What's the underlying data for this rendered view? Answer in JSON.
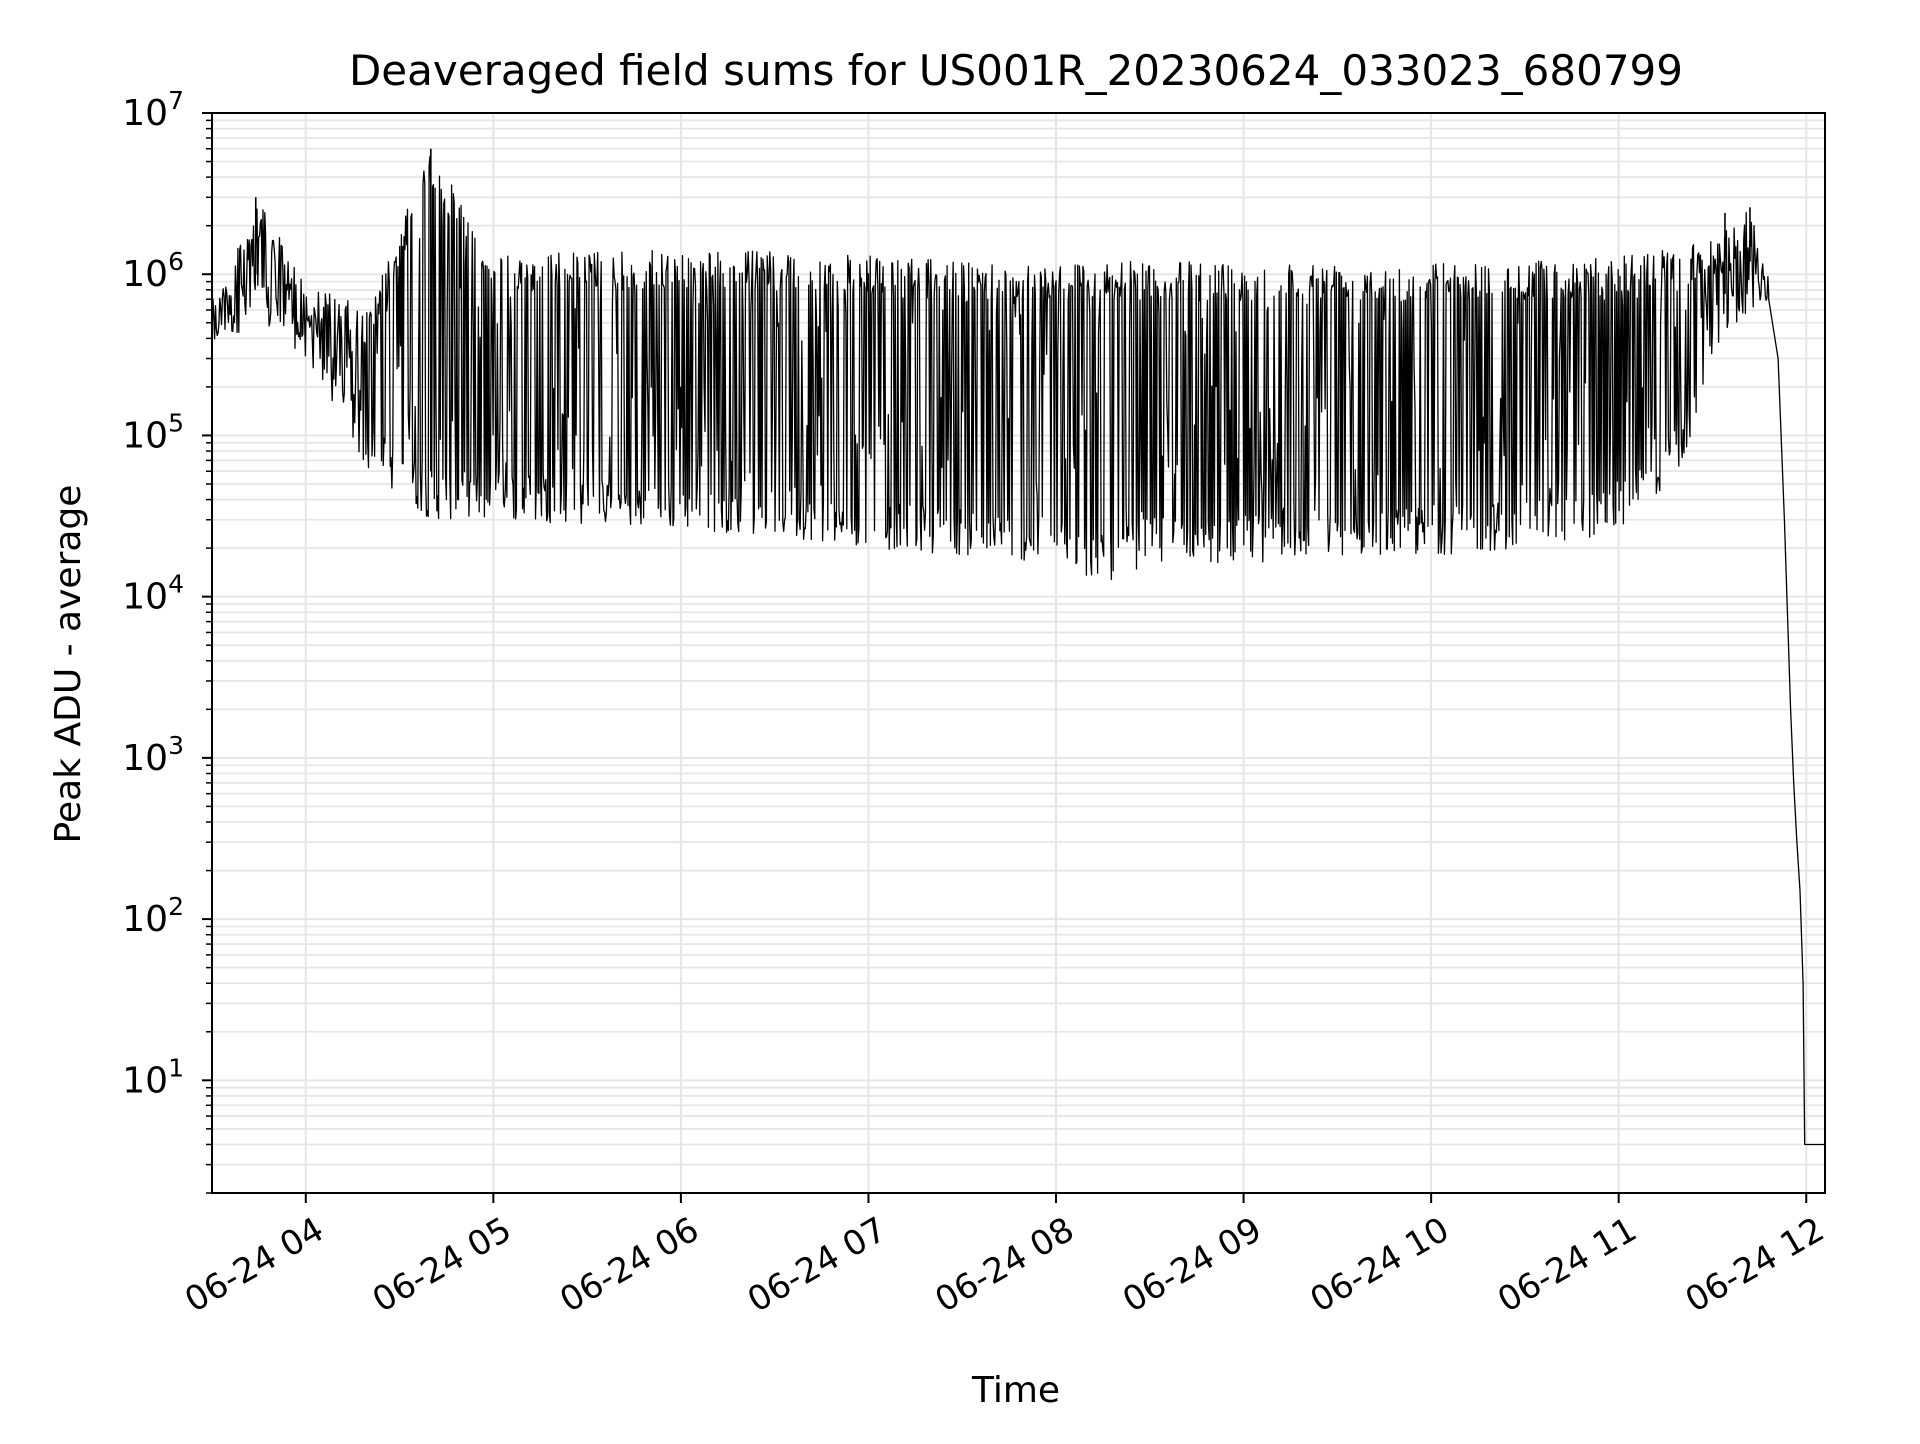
{
  "chart_data": {
    "type": "line",
    "title": "Deaveraged field sums for US001R_20230624_033023_680799",
    "xlabel": "Time",
    "ylabel": "Peak ADU - average",
    "y_scale": "log",
    "ylim": [
      2,
      10000000
    ],
    "xlim": [
      "2023-06-24 03:30",
      "2023-06-24 12:06"
    ],
    "grid": "on (major and minor)",
    "line_color": "#000000",
    "grid_color": "#e6e6e6",
    "x_ticks": [
      "2023-06-24 04:00",
      "2023-06-24 05:00",
      "2023-06-24 06:00",
      "2023-06-24 07:00",
      "2023-06-24 08:00",
      "2023-06-24 09:00",
      "2023-06-24 10:00",
      "2023-06-24 11:00",
      "2023-06-24 12:00"
    ],
    "x_tick_labels": [
      "06-24 04",
      "06-24 05",
      "06-24 06",
      "06-24 07",
      "06-24 08",
      "06-24 09",
      "06-24 10",
      "06-24 11",
      "06-24 12"
    ],
    "y_ticks": [
      10,
      100,
      1000,
      10000,
      100000,
      1000000,
      10000000
    ],
    "y_tick_labels": [
      {
        "base": "10",
        "exp": "1"
      },
      {
        "base": "10",
        "exp": "2"
      },
      {
        "base": "10",
        "exp": "3"
      },
      {
        "base": "10",
        "exp": "4"
      },
      {
        "base": "10",
        "exp": "5"
      },
      {
        "base": "10",
        "exp": "6"
      },
      {
        "base": "10",
        "exp": "7"
      }
    ],
    "series": [
      {
        "style": "dense oscillating trace",
        "envelope_points": [
          {
            "x": "2023-06-24 03:30",
            "upper": 600000,
            "lower": 350000
          },
          {
            "x": "2023-06-24 03:44",
            "upper": 3000000,
            "lower": 500000
          },
          {
            "x": "2023-06-24 04:00",
            "upper": 900000,
            "lower": 300000
          },
          {
            "x": "2023-06-24 04:20",
            "upper": 600000,
            "lower": 60000
          },
          {
            "x": "2023-06-24 04:40",
            "upper": 6000000,
            "lower": 30000
          },
          {
            "x": "2023-06-24 05:00",
            "upper": 1300000,
            "lower": 30000
          },
          {
            "x": "2023-06-24 05:30",
            "upper": 1400000,
            "lower": 28000
          },
          {
            "x": "2023-06-24 06:00",
            "upper": 1400000,
            "lower": 26000
          },
          {
            "x": "2023-06-24 06:30",
            "upper": 1400000,
            "lower": 24000
          },
          {
            "x": "2023-06-24 07:00",
            "upper": 1300000,
            "lower": 20000
          },
          {
            "x": "2023-06-24 07:30",
            "upper": 1200000,
            "lower": 18000
          },
          {
            "x": "2023-06-24 08:00",
            "upper": 1200000,
            "lower": 16000
          },
          {
            "x": "2023-06-24 08:15",
            "upper": 1200000,
            "lower": 12000
          },
          {
            "x": "2023-06-24 08:30",
            "upper": 1200000,
            "lower": 16000
          },
          {
            "x": "2023-06-24 09:00",
            "upper": 1200000,
            "lower": 16000
          },
          {
            "x": "2023-06-24 09:30",
            "upper": 1200000,
            "lower": 18000
          },
          {
            "x": "2023-06-24 10:00",
            "upper": 1200000,
            "lower": 18000
          },
          {
            "x": "2023-06-24 10:30",
            "upper": 1200000,
            "lower": 20000
          },
          {
            "x": "2023-06-24 11:00",
            "upper": 1300000,
            "lower": 25000
          },
          {
            "x": "2023-06-24 11:20",
            "upper": 1500000,
            "lower": 60000
          },
          {
            "x": "2023-06-24 11:30",
            "upper": 1600000,
            "lower": 300000
          },
          {
            "x": "2023-06-24 11:42",
            "upper": 2600000,
            "lower": 600000
          },
          {
            "x": "2023-06-24 11:48",
            "upper": 800000,
            "lower": 700000
          }
        ],
        "spikes": [
          {
            "x": "2023-06-24 03:44",
            "y": 3000000
          },
          {
            "x": "2023-06-24 04:31",
            "y": 1500000
          },
          {
            "x": "2023-06-24 04:40",
            "y": 6000000
          },
          {
            "x": "2023-06-24 11:34",
            "y": 2400000
          },
          {
            "x": "2023-06-24 11:42",
            "y": 2600000
          }
        ],
        "tail_points": [
          {
            "x": "2023-06-24 11:48",
            "y": 700000
          },
          {
            "x": "2023-06-24 11:51",
            "y": 300000
          },
          {
            "x": "2023-06-24 11:53",
            "y": 30000
          },
          {
            "x": "2023-06-24 11:55",
            "y": 2000
          },
          {
            "x": "2023-06-24 11:56",
            "y": 700
          },
          {
            "x": "2023-06-24 11:57",
            "y": 300
          },
          {
            "x": "2023-06-24 11:58",
            "y": 150
          },
          {
            "x": "2023-06-24 11:59",
            "y": 40
          },
          {
            "x": "2023-06-24 11:59.5",
            "y": 4
          },
          {
            "x": "2023-06-24 12:06",
            "y": 4
          }
        ]
      }
    ]
  }
}
